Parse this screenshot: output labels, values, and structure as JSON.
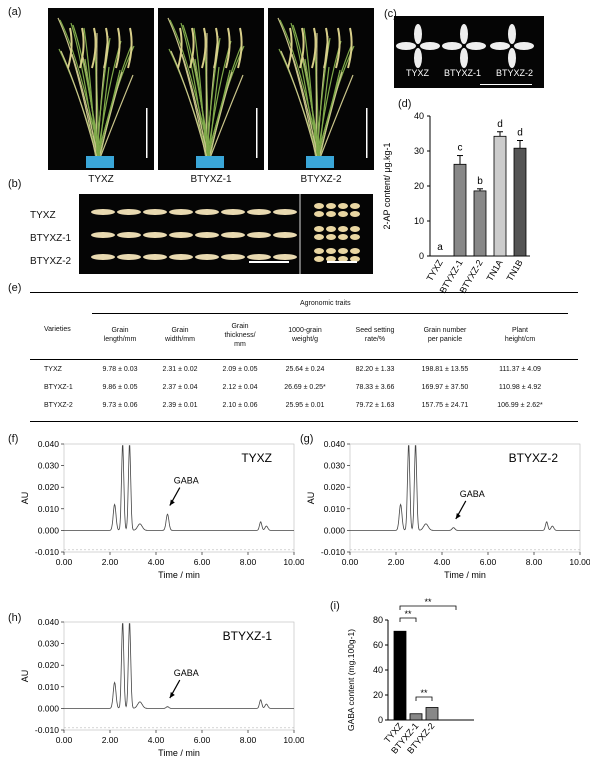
{
  "panel_labels": {
    "a": "(a)",
    "b": "(b)",
    "c": "(c)",
    "d": "(d)",
    "e": "(e)",
    "f": "(f)",
    "g": "(g)",
    "h": "(h)",
    "i": "(i)"
  },
  "plants": [
    "TYXZ",
    "BTYXZ-1",
    "BTYXZ-2"
  ],
  "grain_rows": [
    "TYXZ",
    "BTYXZ-1",
    "BTYXZ-2"
  ],
  "seedlings": [
    "TYXZ",
    "BTYXZ-1",
    "BTYXZ-2"
  ],
  "chart_2ap": {
    "type": "bar",
    "ylabel": "2-AP content/ μg.kg-1",
    "categories": [
      "TYXZ",
      "BTYXZ-1",
      "BTYXZ-2",
      "TN1A",
      "TN1B"
    ],
    "values": [
      0,
      26.2,
      18.6,
      34.2,
      30.8
    ],
    "errors": [
      0,
      2.5,
      0.6,
      1.3,
      2.2
    ],
    "letters": [
      "a",
      "c",
      "b",
      "d",
      "d"
    ],
    "colors": [
      "#888888",
      "#888888",
      "#888888",
      "#cccccc",
      "#555555"
    ],
    "ylim": [
      0,
      40
    ],
    "yticks": [
      "0",
      "10",
      "20",
      "30",
      "40"
    ]
  },
  "table": {
    "group_header": "Agronomic traits",
    "row_header": "Varieties",
    "columns": [
      [
        "Grain",
        "length/mm"
      ],
      [
        "Grain",
        "width/mm"
      ],
      [
        "Grain",
        "thickness/",
        "mm"
      ],
      [
        "1000-grain",
        "weight/g"
      ],
      [
        "Seed setting",
        "rate/%"
      ],
      [
        "Grain number",
        "per panicle"
      ],
      [
        "Plant",
        "height/cm"
      ]
    ],
    "rows": [
      {
        "name": "TYXZ",
        "cells": [
          "9.78 ± 0.03",
          "2.31 ± 0.02",
          "2.09 ± 0.05",
          "25.64 ± 0.24",
          "82.20 ± 1.33",
          "198.81 ± 13.55",
          "111.37 ± 4.09"
        ]
      },
      {
        "name": "BTYXZ-1",
        "cells": [
          "9.86 ± 0.05",
          "2.37 ± 0.04",
          "2.12 ± 0.04",
          "26.69 ± 0.25*",
          "78.33 ± 3.66",
          "169.97 ± 37.50",
          "110.98 ± 4.92"
        ]
      },
      {
        "name": "BTYXZ-2",
        "cells": [
          "9.73 ± 0.06",
          "2.39 ± 0.01",
          "2.10 ± 0.06",
          "25.95 ± 0.01",
          "79.72 ± 1.63",
          "157.75 ± 24.71",
          "106.99 ± 2.62*"
        ]
      }
    ]
  },
  "chromatograms": {
    "xlabel": "Time / min",
    "ylabel": "AU",
    "xticks": [
      "0.00",
      "2.00",
      "4.00",
      "6.00",
      "8.00",
      "10.00"
    ],
    "yticks": [
      "-0.010",
      "0.000",
      "0.010",
      "0.020",
      "0.030",
      "0.040"
    ],
    "annotation": "GABA",
    "f": {
      "title": "TYXZ",
      "gaba_height": 0.0075
    },
    "g": {
      "title": "BTYXZ-2",
      "gaba_height": 0.0013
    },
    "h": {
      "title": "BTYXZ-1",
      "gaba_height": 0.0008
    }
  },
  "chart_gaba": {
    "type": "bar",
    "ylabel": "GABA content (mg.100g-1)",
    "categories": [
      "TYXZ",
      "BTYXZ-1",
      "BTYXZ-2"
    ],
    "values": [
      71,
      5,
      10
    ],
    "ylim": [
      0,
      80
    ],
    "yticks": [
      "0",
      "20",
      "40",
      "60",
      "80"
    ],
    "significance": [
      "**",
      "**",
      "**"
    ]
  }
}
